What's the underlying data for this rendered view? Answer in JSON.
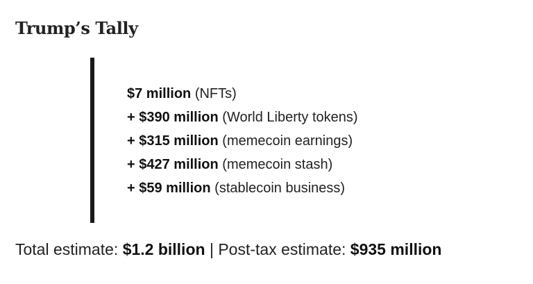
{
  "title": "Trump’s Tally",
  "items": [
    {
      "amount": "$7 million",
      "note": "(NFTs)"
    },
    {
      "amount": "+ $390 million",
      "note": "(World Liberty tokens)"
    },
    {
      "amount": "+ $315 million",
      "note": "(memecoin earnings)"
    },
    {
      "amount": "+ $427 million",
      "note": "(memecoin stash)"
    },
    {
      "amount": "+ $59 million",
      "note": "(stablecoin business)"
    }
  ],
  "summary": {
    "total_label": "Total estimate:",
    "total_value": "$1.2 billion",
    "separator": "|",
    "post_tax_label": "Post-tax estimate:",
    "post_tax_value": "$935 million"
  },
  "colors": {
    "text": "#222222",
    "rule": "#1a1a1a",
    "background": "#ffffff"
  }
}
